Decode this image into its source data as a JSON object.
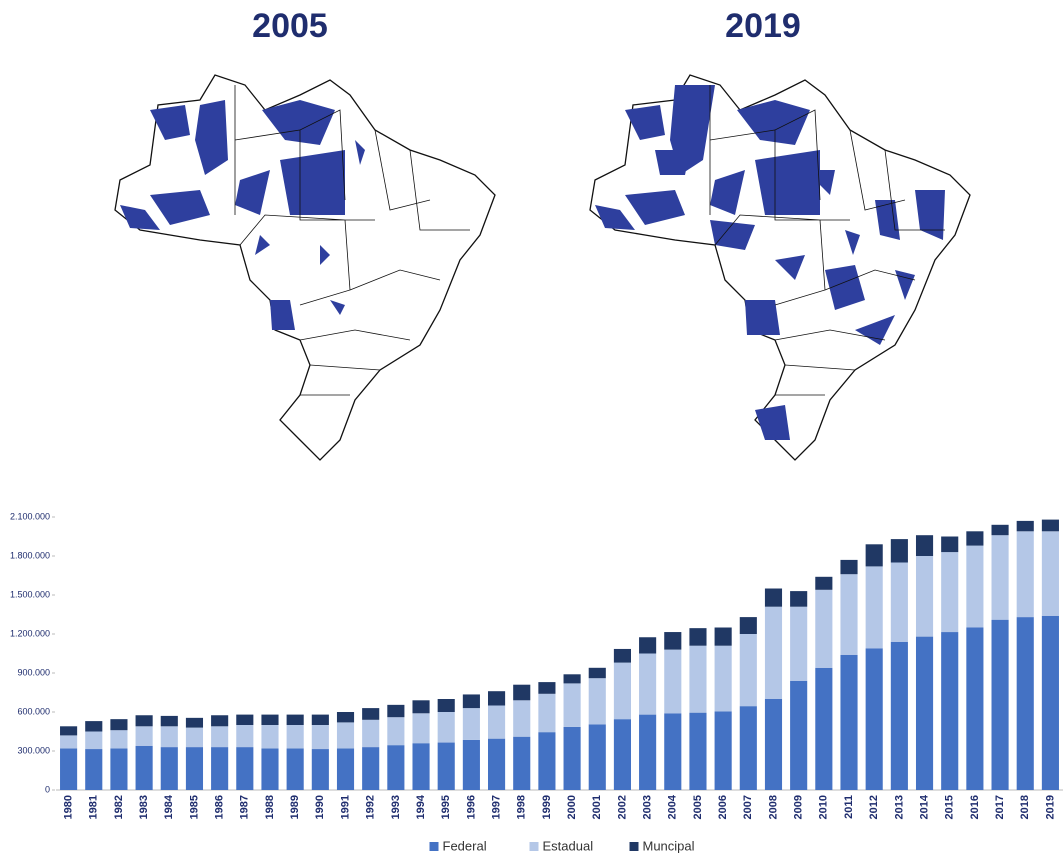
{
  "maps": {
    "titles": [
      "2005",
      "2019"
    ]
  },
  "chart_data": {
    "type": "stacked_bar",
    "categories": [
      "1980",
      "1981",
      "1982",
      "1983",
      "1984",
      "1985",
      "1986",
      "1987",
      "1988",
      "1989",
      "1990",
      "1991",
      "1992",
      "1993",
      "1994",
      "1995",
      "1996",
      "1997",
      "1998",
      "1999",
      "2000",
      "2001",
      "2002",
      "2003",
      "2004",
      "2005",
      "2006",
      "2007",
      "2008",
      "2009",
      "2010",
      "2011",
      "2012",
      "2013",
      "2014",
      "2015",
      "2016",
      "2017",
      "2018",
      "2019"
    ],
    "series": [
      {
        "name": "Federal",
        "color": "#4472c4",
        "values": [
          320000,
          315000,
          320000,
          340000,
          330000,
          330000,
          330000,
          330000,
          320000,
          320000,
          315000,
          320000,
          330000,
          345000,
          360000,
          365000,
          385000,
          395000,
          410000,
          445000,
          485000,
          505000,
          545000,
          580000,
          590000,
          595000,
          605000,
          645000,
          700000,
          840000,
          940000,
          1040000,
          1090000,
          1140000,
          1180000,
          1215000,
          1250000,
          1310000,
          1330000,
          1340000
        ]
      },
      {
        "name": "Estadual",
        "color": "#b4c7e7",
        "values": [
          100000,
          135000,
          140000,
          150000,
          160000,
          150000,
          160000,
          170000,
          180000,
          180000,
          185000,
          200000,
          210000,
          215000,
          230000,
          235000,
          245000,
          255000,
          280000,
          295000,
          335000,
          355000,
          435000,
          470000,
          490000,
          515000,
          505000,
          555000,
          710000,
          570000,
          600000,
          620000,
          630000,
          610000,
          620000,
          615000,
          630000,
          650000,
          660000,
          650000
        ]
      },
      {
        "name": "Muncipal",
        "color": "#203864",
        "values": [
          70000,
          80000,
          85000,
          85000,
          80000,
          75000,
          85000,
          80000,
          80000,
          80000,
          80000,
          80000,
          90000,
          95000,
          100000,
          100000,
          105000,
          110000,
          120000,
          90000,
          70000,
          80000,
          105000,
          125000,
          135000,
          135000,
          140000,
          130000,
          140000,
          120000,
          100000,
          110000,
          170000,
          180000,
          160000,
          120000,
          110000,
          80000,
          80000,
          90000
        ]
      }
    ],
    "ylim": [
      0,
      2100000
    ],
    "yticks": [
      0,
      {
        "value": 300000,
        "label": "300.000"
      },
      {
        "value": 600000,
        "label": "600.000"
      },
      {
        "value": 900000,
        "label": "900.000"
      },
      {
        "value": 1200000,
        "label": "1.200.000"
      },
      {
        "value": 1500000,
        "label": "1.500.000"
      },
      {
        "value": 1800000,
        "label": "1.800.000"
      },
      {
        "value": 2100000,
        "label": "2.100.000"
      }
    ],
    "legend": "bottom"
  }
}
